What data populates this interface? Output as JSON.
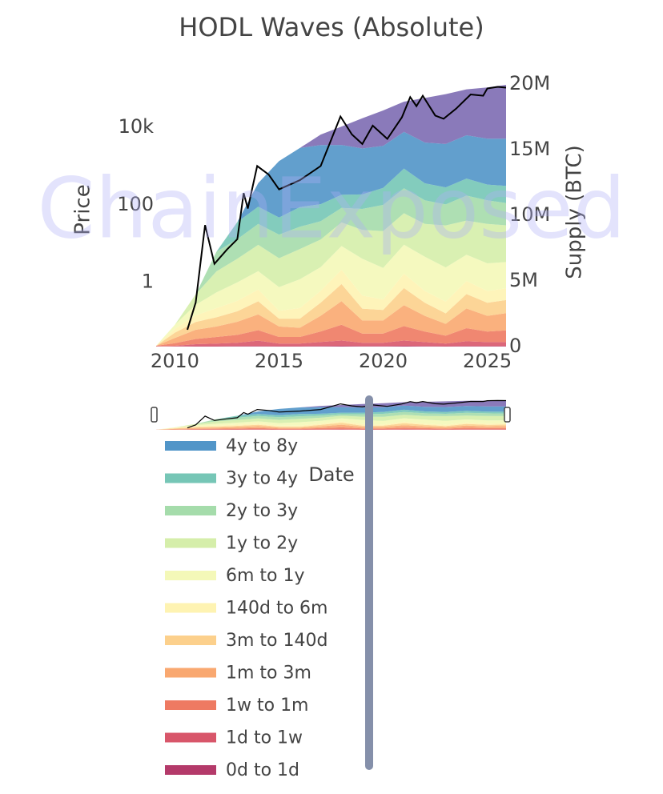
{
  "chart_data": {
    "type": "stacked_area",
    "title": "HODL Waves (Absolute)",
    "x_label": "Date",
    "y_label": "Price",
    "y2_label": "Supply (BTC)",
    "watermark": "ChainExposed",
    "xlim": [
      2009.1,
      2025.9
    ],
    "xticks": [
      2010,
      2015,
      2020,
      2025
    ],
    "ylim": [
      0.022,
      130000
    ],
    "log_y": true,
    "yticks": [
      1,
      100,
      {
        "value": 10000,
        "label": "10k"
      }
    ],
    "y2lim": [
      0,
      20000000
    ],
    "y2ticks": [
      0,
      {
        "value": 5000000,
        "label": "5M"
      },
      {
        "value": 10000000,
        "label": "10M"
      },
      {
        "value": 15000000,
        "label": "15M"
      },
      {
        "value": 20000000,
        "label": "20M"
      }
    ],
    "x": [
      2009.1,
      2010,
      2011,
      2012,
      2013,
      2014,
      2015,
      2016,
      2017,
      2018,
      2019,
      2020,
      2021,
      2022,
      2023,
      2024,
      2025,
      2025.9
    ],
    "series": [
      {
        "name": "0d to 1d",
        "color": "#b43a6a",
        "axis": "y2",
        "values": [
          10000,
          10000,
          30000,
          30000,
          40000,
          50000,
          30000,
          30000,
          50000,
          60000,
          40000,
          40000,
          60000,
          40000,
          30000,
          50000,
          40000,
          40000
        ]
      },
      {
        "name": "1d to 1w",
        "color": "#d8566a",
        "axis": "y2",
        "values": [
          20000,
          50000,
          150000,
          200000,
          250000,
          400000,
          200000,
          200000,
          300000,
          400000,
          250000,
          250000,
          400000,
          300000,
          200000,
          350000,
          300000,
          300000
        ]
      },
      {
        "name": "1w to 1m",
        "color": "#ee7a62",
        "axis": "y2",
        "values": [
          30000,
          200000,
          400000,
          500000,
          600000,
          800000,
          500000,
          500000,
          800000,
          1200000,
          700000,
          700000,
          1100000,
          800000,
          600000,
          1000000,
          800000,
          900000
        ]
      },
      {
        "name": "1m to 3m",
        "color": "#f9a870",
        "axis": "y2",
        "values": [
          0,
          400000,
          700000,
          800000,
          1000000,
          1200000,
          800000,
          700000,
          1200000,
          1800000,
          1000000,
          1000000,
          1600000,
          1200000,
          900000,
          1500000,
          1200000,
          1300000
        ]
      },
      {
        "name": "3m to 140d",
        "color": "#fcd08c",
        "axis": "y2",
        "values": [
          0,
          400000,
          600000,
          700000,
          800000,
          1000000,
          600000,
          700000,
          1000000,
          1300000,
          900000,
          800000,
          1300000,
          1000000,
          800000,
          1100000,
          1000000,
          1000000
        ]
      },
      {
        "name": "140d to 6m",
        "color": "#fef3b2",
        "axis": "y2",
        "values": [
          0,
          300000,
          500000,
          700000,
          800000,
          900000,
          600000,
          800000,
          900000,
          1100000,
          1000000,
          800000,
          1100000,
          900000,
          900000,
          1000000,
          900000,
          900000
        ]
      },
      {
        "name": "6m to 1y",
        "color": "#f4f8b8",
        "axis": "y2",
        "values": [
          0,
          300000,
          800000,
          1200000,
          1400000,
          1400000,
          1800000,
          2200000,
          1800000,
          1800000,
          2800000,
          2400000,
          2200000,
          2600000,
          2600000,
          2000000,
          2100000,
          2000000
        ]
      },
      {
        "name": "1y to 2y",
        "color": "#d5eeaa",
        "axis": "y2",
        "values": [
          0,
          0,
          800000,
          1600000,
          1800000,
          2000000,
          2200000,
          2300000,
          2100000,
          1800000,
          2200000,
          2800000,
          2400000,
          2500000,
          3200000,
          2600000,
          3000000,
          2800000
        ]
      },
      {
        "name": "2y to 3y",
        "color": "#a5dcab",
        "axis": "y2",
        "values": [
          0,
          0,
          0,
          1500000,
          1500000,
          1600000,
          1800000,
          1700000,
          1400000,
          1100000,
          1600000,
          2000000,
          1900000,
          1800000,
          1600000,
          1900000,
          1800000,
          1700000
        ]
      },
      {
        "name": "3y to 4y",
        "color": "#76c6b6",
        "axis": "y2",
        "values": [
          0,
          0,
          0,
          0,
          1300000,
          1300000,
          1300000,
          1500000,
          1300000,
          1000000,
          1100000,
          1300000,
          1500000,
          1300000,
          1300000,
          1300000,
          1200000,
          1300000
        ]
      },
      {
        "name": "4y to 8y",
        "color": "#5195c8",
        "axis": "y2",
        "values": [
          0,
          0,
          0,
          0,
          0,
          1800000,
          4300000,
          4500000,
          4500000,
          3800000,
          3500000,
          3200000,
          2800000,
          3100000,
          3300000,
          3300000,
          3500000,
          3600000
        ]
      },
      {
        "color": "#7d6cb3",
        "axis": "y2",
        "values": [
          0,
          0,
          0,
          0,
          0,
          0,
          0,
          0,
          800000,
          1400000,
          2300000,
          2700000,
          2300000,
          3400000,
          3800000,
          3500000,
          3900000,
          4100000
        ]
      }
    ],
    "price": {
      "color": "#000000",
      "axis": "y",
      "x": [
        2010.6,
        2011.0,
        2011.45,
        2011.9,
        2012.5,
        2013.0,
        2013.3,
        2013.5,
        2013.95,
        2014.5,
        2015.0,
        2016.0,
        2017.0,
        2017.95,
        2018.5,
        2019.0,
        2019.5,
        2020.2,
        2020.9,
        2021.3,
        2021.6,
        2021.9,
        2022.5,
        2022.9,
        2023.5,
        2024.2,
        2024.8,
        2025.0,
        2025.5,
        2025.9
      ],
      "values": [
        0.06,
        0.3,
        30,
        3,
        7,
        13,
        200,
        80,
        1000,
        600,
        250,
        430,
        1000,
        19000,
        6500,
        3700,
        11000,
        5000,
        18000,
        60000,
        35000,
        65000,
        20000,
        16500,
        30000,
        70000,
        65000,
        100000,
        110000,
        105000
      ]
    }
  }
}
